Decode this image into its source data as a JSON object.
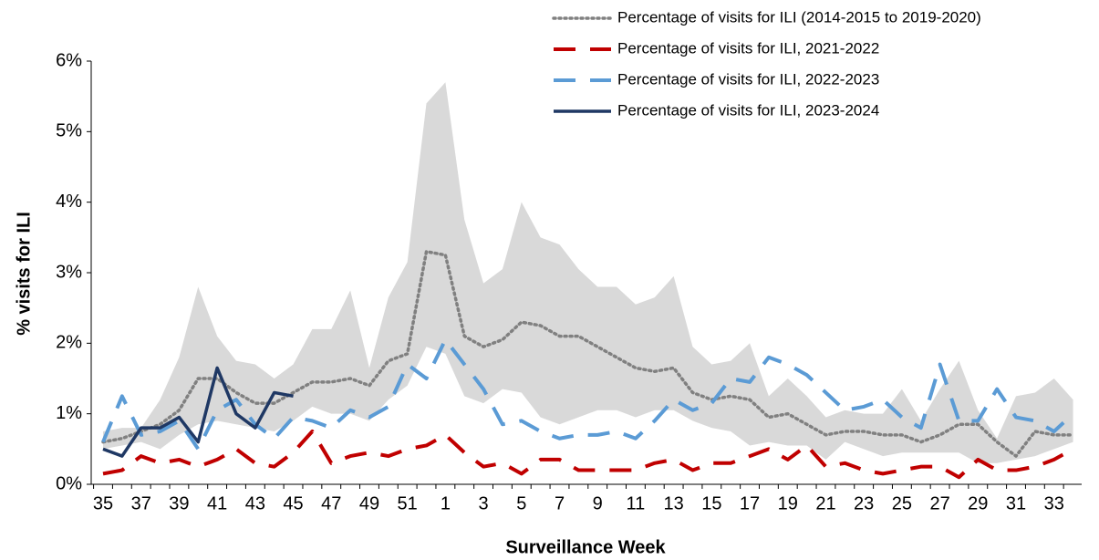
{
  "chart_data": {
    "type": "line",
    "y_axis_label": "% visits for ILI",
    "x_axis_label": "Surveillance Week",
    "categories": [
      "35",
      null,
      "37",
      null,
      "39",
      null,
      "41",
      null,
      "43",
      null,
      "45",
      null,
      "47",
      null,
      "49",
      null,
      "51",
      null,
      "1",
      null,
      "3",
      null,
      "5",
      null,
      "7",
      null,
      "9",
      null,
      "11",
      null,
      "13",
      null,
      "15",
      null,
      "17",
      null,
      "19",
      null,
      "21",
      null,
      "23",
      null,
      "25",
      null,
      "27",
      null,
      "29",
      null,
      "31",
      null,
      "33",
      null
    ],
    "ylim": [
      0,
      6
    ],
    "yticks": [
      {
        "value": 0,
        "label": "0%"
      },
      {
        "value": 1,
        "label": "1%"
      },
      {
        "value": 2,
        "label": "2%"
      },
      {
        "value": 3,
        "label": "3%"
      },
      {
        "value": 4,
        "label": "4%"
      },
      {
        "value": 5,
        "label": "5%"
      },
      {
        "value": 6,
        "label": "6%"
      }
    ],
    "range_band": {
      "color": "#d9d9d9",
      "upper": [
        0.75,
        0.8,
        0.8,
        1.2,
        1.8,
        2.8,
        2.1,
        1.75,
        1.7,
        1.5,
        1.7,
        2.2,
        2.2,
        2.75,
        1.65,
        2.65,
        3.15,
        5.4,
        5.7,
        3.75,
        2.85,
        3.05,
        4.0,
        3.5,
        3.4,
        3.05,
        2.8,
        2.8,
        2.55,
        2.65,
        2.95,
        1.95,
        1.7,
        1.75,
        2.0,
        1.25,
        1.5,
        1.25,
        0.95,
        1.05,
        1.0,
        1.0,
        1.35,
        0.9,
        1.35,
        1.75,
        1.05,
        0.65,
        1.25,
        1.3,
        1.5,
        1.2
      ],
      "lower": [
        0.5,
        0.55,
        0.6,
        0.5,
        0.7,
        0.85,
        0.9,
        0.85,
        0.8,
        0.75,
        0.9,
        1.1,
        1.0,
        1.0,
        0.9,
        1.2,
        1.4,
        1.95,
        1.85,
        1.25,
        1.15,
        1.35,
        1.3,
        0.95,
        0.85,
        0.95,
        1.05,
        1.05,
        0.95,
        1.05,
        1.05,
        0.9,
        0.8,
        0.75,
        0.55,
        0.6,
        0.55,
        0.55,
        0.35,
        0.6,
        0.5,
        0.4,
        0.45,
        0.45,
        0.45,
        0.45,
        0.3,
        0.3,
        0.35,
        0.4,
        0.5,
        0.6
      ]
    },
    "series": [
      {
        "name": "Percentage of visits for ILI (2014-2015 to 2019-2020)",
        "color": "#808080",
        "dash": "dotted",
        "values": [
          0.6,
          0.65,
          0.75,
          0.85,
          1.05,
          1.5,
          1.5,
          1.3,
          1.15,
          1.15,
          1.3,
          1.45,
          1.45,
          1.5,
          1.4,
          1.75,
          1.85,
          3.3,
          3.25,
          2.1,
          1.95,
          2.05,
          2.3,
          2.25,
          2.1,
          2.1,
          1.95,
          1.8,
          1.65,
          1.6,
          1.65,
          1.3,
          1.2,
          1.25,
          1.2,
          0.95,
          1.0,
          0.85,
          0.7,
          0.75,
          0.75,
          0.7,
          0.7,
          0.6,
          0.7,
          0.85,
          0.85,
          0.6,
          0.4,
          0.75,
          0.7,
          0.7
        ]
      },
      {
        "name": "Percentage of visits for ILI, 2021-2022",
        "color": "#c00000",
        "dash": "dashed",
        "values": [
          0.15,
          0.2,
          0.4,
          0.3,
          0.35,
          0.25,
          0.35,
          0.5,
          0.3,
          0.25,
          0.45,
          0.75,
          0.3,
          0.4,
          0.45,
          0.4,
          0.5,
          0.55,
          0.7,
          0.45,
          0.25,
          0.3,
          0.15,
          0.35,
          0.35,
          0.2,
          0.2,
          0.2,
          0.2,
          0.3,
          0.35,
          0.2,
          0.3,
          0.3,
          0.4,
          0.5,
          0.35,
          0.55,
          0.25,
          0.3,
          0.2,
          0.15,
          0.2,
          0.25,
          0.25,
          0.1,
          0.35,
          0.2,
          0.2,
          0.25,
          0.35,
          0.5
        ]
      },
      {
        "name": "Percentage of visits for ILI, 2022-2023",
        "color": "#5b9bd5",
        "dash": "dashed",
        "values": [
          0.6,
          1.25,
          0.7,
          0.75,
          0.9,
          0.5,
          1.05,
          1.2,
          0.85,
          0.65,
          0.95,
          0.9,
          0.8,
          1.05,
          0.95,
          1.1,
          1.7,
          1.5,
          2.05,
          1.7,
          1.35,
          0.85,
          0.9,
          0.75,
          0.65,
          0.7,
          0.7,
          0.75,
          0.65,
          0.9,
          1.2,
          1.05,
          1.15,
          1.5,
          1.45,
          1.8,
          1.7,
          1.55,
          1.3,
          1.05,
          1.1,
          1.2,
          0.95,
          0.8,
          1.7,
          0.9,
          0.9,
          1.35,
          0.95,
          0.9,
          0.75,
          1.0
        ]
      },
      {
        "name": "Percentage of visits for ILI, 2023-2024",
        "color": "#1f3864",
        "dash": "solid",
        "values": [
          0.5,
          0.4,
          0.8,
          0.8,
          0.95,
          0.6,
          1.65,
          1.0,
          0.8,
          1.3,
          1.25,
          null,
          null,
          null,
          null,
          null,
          null,
          null,
          null,
          null,
          null,
          null,
          null,
          null,
          null,
          null,
          null,
          null,
          null,
          null,
          null,
          null,
          null,
          null,
          null,
          null,
          null,
          null,
          null,
          null,
          null,
          null,
          null,
          null,
          null,
          null,
          null,
          null,
          null,
          null,
          null,
          null
        ]
      }
    ]
  }
}
